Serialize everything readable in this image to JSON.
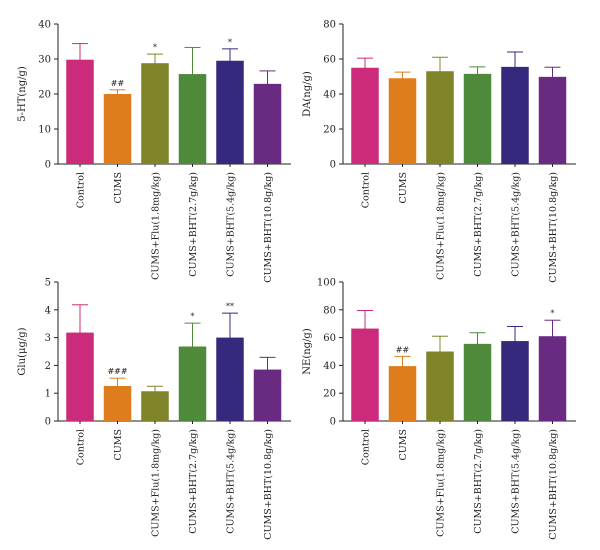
{
  "figure_colors": {
    "Control": "#cc2a7a",
    "CUMS": "#df7d1e",
    "CUMS+Flu(1.8mg/kg)": "#7f8428",
    "CUMS+BHT(2.7g/kg)": "#4f8a3a",
    "CUMS+BHT(5.4g/kg)": "#34297d",
    "CUMS+BHT(10.8g/kg)": "#692a82"
  },
  "chart_data": [
    {
      "id": "ht5",
      "type": "bar",
      "ylabel": "5-HT(ng/g)",
      "ylim": [
        0,
        40
      ],
      "yticks": [
        "0",
        "10",
        "20",
        "30",
        "40"
      ],
      "categories": [
        "Control",
        "CUMS",
        "CUMS+Flu(1.8mg/kg)",
        "CUMS+BHT(2.7g/kg)",
        "CUMS+BHT(5.4g/kg)",
        "CUMS+BHT(10.8g/kg)"
      ],
      "values": [
        29.8,
        20.0,
        28.8,
        25.7,
        29.5,
        22.9
      ],
      "errors": [
        4.6,
        1.2,
        2.6,
        7.6,
        3.4,
        3.7
      ],
      "annotations": [
        "",
        "##",
        "*",
        "",
        "*",
        ""
      ]
    },
    {
      "id": "da",
      "type": "bar",
      "ylabel": "DA(ng/g)",
      "ylim": [
        0,
        80
      ],
      "yticks": [
        "0",
        "20",
        "40",
        "60",
        "80"
      ],
      "categories": [
        "Control",
        "CUMS",
        "CUMS+Flu(1.8mg/kg)",
        "CUMS+BHT(2.7g/kg)",
        "CUMS+BHT(5.4g/kg)",
        "CUMS+BHT(10.8g/kg)"
      ],
      "values": [
        55.0,
        49.0,
        53.0,
        51.5,
        55.5,
        49.8
      ],
      "errors": [
        5.5,
        3.5,
        8.0,
        4.0,
        8.5,
        5.5
      ],
      "annotations": [
        "",
        "",
        "",
        "",
        "",
        ""
      ]
    },
    {
      "id": "glu",
      "type": "bar",
      "ylabel": "Glu(μg/g)",
      "ylim": [
        0,
        5
      ],
      "yticks": [
        "0",
        "1",
        "2",
        "3",
        "4",
        "5"
      ],
      "categories": [
        "Control",
        "CUMS",
        "CUMS+Flu(1.8mg/kg)",
        "CUMS+BHT(2.7g/kg)",
        "CUMS+BHT(5.4g/kg)",
        "CUMS+BHT(10.8g/kg)"
      ],
      "values": [
        3.18,
        1.26,
        1.07,
        2.68,
        3.0,
        1.85
      ],
      "errors": [
        1.0,
        0.28,
        0.18,
        0.84,
        0.88,
        0.44
      ],
      "annotations": [
        "",
        "###",
        "",
        "*",
        "**",
        ""
      ]
    },
    {
      "id": "ne",
      "type": "bar",
      "ylabel": "NE(ng/g)",
      "ylim": [
        0,
        100
      ],
      "yticks": [
        "0",
        "20",
        "40",
        "60",
        "80",
        "100"
      ],
      "categories": [
        "Control",
        "CUMS",
        "CUMS+Flu(1.8mg/kg)",
        "CUMS+BHT(2.7g/kg)",
        "CUMS+BHT(5.4g/kg)",
        "CUMS+BHT(10.8g/kg)"
      ],
      "values": [
        66.5,
        39.5,
        50.0,
        55.5,
        57.5,
        61.0
      ],
      "errors": [
        13.0,
        7.0,
        11.0,
        8.0,
        10.5,
        11.5
      ],
      "annotations": [
        "",
        "##",
        "",
        "",
        "",
        "*"
      ]
    }
  ]
}
